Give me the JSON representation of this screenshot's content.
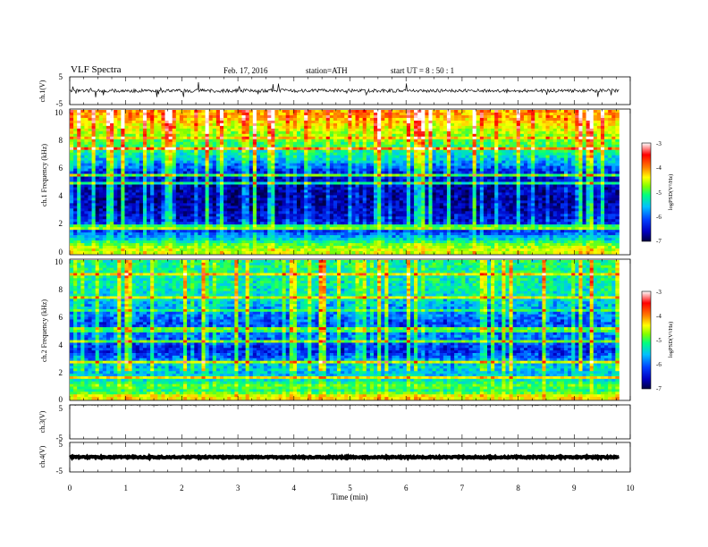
{
  "header": {
    "title": "VLF Spectra",
    "date": "Feb. 17, 2016",
    "station": "station=ATH",
    "start": "start  UT =   8 : 50 : 1"
  },
  "x_axis": {
    "label": "Time (min)",
    "ticks": [
      "0",
      "1",
      "2",
      "3",
      "4",
      "5",
      "6",
      "7",
      "8",
      "9",
      "10"
    ]
  },
  "colorbar": {
    "label": "logPSD(V²/Hz)",
    "ticks": [
      "-3",
      "-4",
      "-5",
      "-6",
      "-7"
    ],
    "min": -7,
    "max": -3,
    "colormap": [
      "#000040",
      "#0000c0",
      "#0040ff",
      "#00c0ff",
      "#00ff80",
      "#80ff00",
      "#ffff00",
      "#ff8000",
      "#ff0000",
      "#ffffff"
    ]
  },
  "chart_data": [
    {
      "type": "line",
      "panel": "ch1-waveform",
      "ylabel": "ch.1(V)",
      "yticks": [
        "5",
        "-5"
      ],
      "ylim": [
        -5,
        5
      ],
      "xlim": [
        0,
        10
      ],
      "data_end_min": 9.8,
      "baseline": 0,
      "noise_amplitude": 0.6,
      "spike_amplitude": 3
    },
    {
      "type": "heatmap",
      "panel": "ch1-spectrogram",
      "ylabel": "ch.1 Frequency (kHz)",
      "yticks": [
        "10",
        "8",
        "6",
        "4",
        "2",
        "0"
      ],
      "ylim": [
        0,
        10
      ],
      "xlim": [
        0,
        10
      ],
      "z_label": "logPSD(V²/Hz)",
      "zlim": [
        -7,
        -3
      ],
      "approx_mean_log_psd_by_freq_khz": [
        {
          "f": 0.25,
          "v": -4.6
        },
        {
          "f": 0.6,
          "v": -4.9
        },
        {
          "f": 1.0,
          "v": -5.6
        },
        {
          "f": 1.5,
          "v": -6.2
        },
        {
          "f": 2.5,
          "v": -6.6
        },
        {
          "f": 3.5,
          "v": -6.8
        },
        {
          "f": 4.5,
          "v": -6.8
        },
        {
          "f": 5.5,
          "v": -6.6
        },
        {
          "f": 6.5,
          "v": -5.8
        },
        {
          "f": 7.5,
          "v": -5.3
        },
        {
          "f": 8.5,
          "v": -4.8
        },
        {
          "f": 9.5,
          "v": -4.2
        }
      ]
    },
    {
      "type": "heatmap",
      "panel": "ch2-spectrogram",
      "ylabel": "ch.2 Frequency (kHz)",
      "yticks": [
        "10",
        "8",
        "6",
        "4",
        "2",
        "0"
      ],
      "ylim": [
        0,
        10
      ],
      "xlim": [
        0,
        10
      ],
      "z_label": "logPSD(V²/Hz)",
      "zlim": [
        -7,
        -3
      ],
      "approx_mean_log_psd_by_freq_khz": [
        {
          "f": 0.25,
          "v": -4.4
        },
        {
          "f": 0.6,
          "v": -5.3
        },
        {
          "f": 1.0,
          "v": -5.0
        },
        {
          "f": 1.5,
          "v": -5.6
        },
        {
          "f": 2.5,
          "v": -5.8
        },
        {
          "f": 3.5,
          "v": -6.5
        },
        {
          "f": 4.5,
          "v": -6.1
        },
        {
          "f": 5.5,
          "v": -6.3
        },
        {
          "f": 6.5,
          "v": -5.9
        },
        {
          "f": 7.5,
          "v": -5.6
        },
        {
          "f": 8.5,
          "v": -5.5
        },
        {
          "f": 9.5,
          "v": -5.4
        }
      ]
    },
    {
      "type": "line",
      "panel": "ch3-waveform",
      "ylabel": "ch.3(V)",
      "yticks": [
        "5",
        "-5"
      ],
      "ylim": [
        -5,
        5
      ],
      "xlim": [
        0,
        10
      ],
      "data_end_min": 9.8,
      "baseline": 5,
      "noise_amplitude": 0.1,
      "spike_amplitude": 0
    },
    {
      "type": "line",
      "panel": "ch4-waveform",
      "ylabel": "ch.4(V)",
      "yticks": [
        "5",
        "-5"
      ],
      "ylim": [
        -5,
        5
      ],
      "xlim": [
        0,
        10
      ],
      "data_end_min": 9.8,
      "baseline": 0,
      "noise_amplitude": 0.25,
      "spike_amplitude": 0
    }
  ]
}
